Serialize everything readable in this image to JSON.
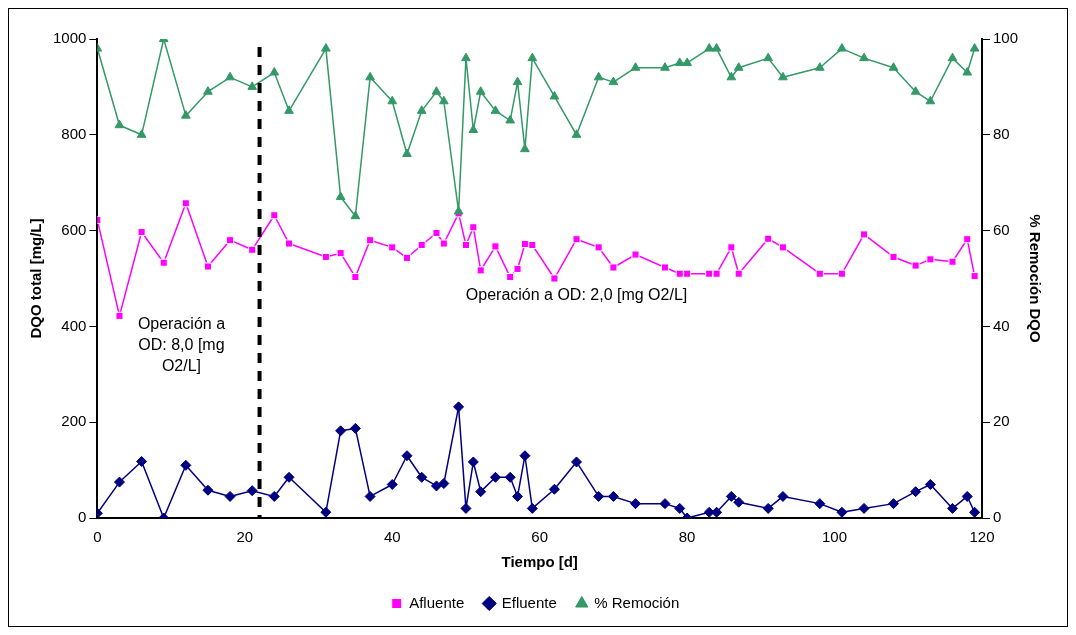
{
  "chart_data": {
    "type": "line",
    "xlabel": "Tiempo [d]",
    "ylabel": "DQO total [mg/L]",
    "y2label": "% Remoción DQO",
    "x": [
      0,
      3,
      6,
      9,
      12,
      15,
      18,
      21,
      24,
      26,
      31,
      33,
      35,
      37,
      40,
      42,
      44,
      46,
      47,
      49,
      50,
      51,
      52,
      54,
      56,
      57,
      58,
      59,
      62,
      65,
      68,
      70,
      73,
      77,
      79,
      80,
      83,
      84,
      86,
      87,
      91,
      93,
      98,
      101,
      104,
      108,
      111,
      113,
      116,
      118,
      119
    ],
    "xlim": [
      0,
      120
    ],
    "xticks": [
      0,
      20,
      40,
      60,
      80,
      100,
      120
    ],
    "ylim": [
      0,
      1000
    ],
    "yticks": [
      0,
      200,
      400,
      600,
      800,
      1000
    ],
    "y2lim": [
      0,
      100
    ],
    "y2ticks": [
      0,
      20,
      40,
      60,
      80,
      100
    ],
    "series": [
      {
        "name": "Afluente",
        "color": "#ff00ff",
        "marker": "square",
        "values": [
          622,
          422,
          597,
          533,
          657,
          525,
          580,
          560,
          632,
          573,
          545,
          553,
          503,
          580,
          565,
          543,
          570,
          595,
          573,
          636,
          570,
          607,
          517,
          567,
          503,
          520,
          572,
          570,
          500,
          582,
          565,
          523,
          550,
          523,
          510,
          510,
          510,
          510,
          565,
          510,
          583,
          565,
          510,
          510,
          592,
          545,
          527,
          540,
          535,
          582,
          505
        ]
      },
      {
        "name": "Efluente",
        "color": "#000080",
        "marker": "diamond",
        "values": [
          10,
          75,
          118,
          0,
          110,
          58,
          45,
          57,
          45,
          85,
          12,
          182,
          187,
          45,
          70,
          130,
          85,
          67,
          72,
          232,
          20,
          117,
          55,
          85,
          85,
          45,
          130,
          20,
          60,
          117,
          45,
          45,
          30,
          30,
          20,
          0,
          12,
          12,
          45,
          33,
          20,
          45,
          30,
          12,
          20,
          30,
          55,
          70,
          20,
          45,
          12
        ]
      },
      {
        "name": "% Remoción",
        "color": "#339966",
        "marker": "triangle",
        "axis": "y2",
        "values": [
          98,
          82,
          80,
          100,
          84,
          89,
          92,
          90,
          93,
          85,
          98,
          67,
          63,
          92,
          87,
          76,
          85,
          89,
          87,
          64,
          96,
          81,
          89,
          85,
          83,
          91,
          77,
          96,
          88,
          80,
          92,
          91,
          94,
          94,
          95,
          95,
          98,
          98,
          92,
          94,
          96,
          92,
          94,
          98,
          96,
          94,
          89,
          87,
          96,
          93,
          98
        ]
      }
    ],
    "ref_lines": [
      {
        "axis": "x",
        "value": 22,
        "color": "#000000",
        "line_style": "dashed"
      }
    ],
    "annotations": [
      "Operación a OD: 8,0 [mg O2/L]",
      "Operación a OD: 2,0 [mg O2/L]"
    ],
    "legend": "bottom",
    "grid": false
  }
}
